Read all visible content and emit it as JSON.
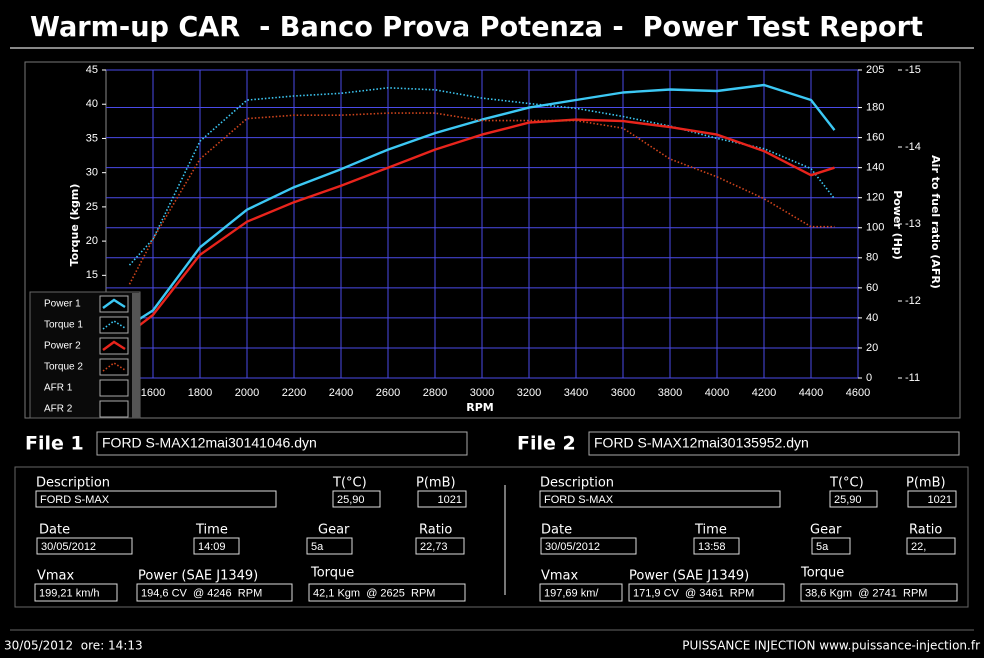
{
  "header": {
    "title": "Warm-up CAR  - Banco Prova Potenza -  Power Test Report"
  },
  "chart_data": {
    "type": "line",
    "x_label": "RPM",
    "y_label": "Torque (kgm)",
    "y2_label": "Power (Hp)",
    "y3_label": "Air to fuel ratio (AFR)",
    "x": [
      1500,
      1600,
      1800,
      2000,
      2200,
      2400,
      2600,
      2800,
      3000,
      3200,
      3400,
      3600,
      3800,
      4000,
      4200,
      4400,
      4500
    ],
    "xlim": [
      1400,
      4600
    ],
    "xticks": [
      1600,
      1800,
      2000,
      2200,
      2400,
      2600,
      2800,
      3000,
      3200,
      3400,
      3600,
      3800,
      4000,
      4200,
      4400,
      4600
    ],
    "ylim": [
      0,
      45
    ],
    "yticks": [
      15,
      20,
      25,
      30,
      35,
      40,
      45
    ],
    "y2lim": [
      0,
      205
    ],
    "y2ticks": [
      0,
      20,
      40,
      60,
      80,
      100,
      120,
      140,
      160,
      180,
      205
    ],
    "y3lim": [
      -11,
      -15
    ],
    "y3ticks": [
      -11,
      -12,
      -13,
      -14,
      -15
    ],
    "grid": true,
    "series": [
      {
        "name": "Power 1",
        "color": "#3cc8f4",
        "style": "solid",
        "axis": "y2",
        "values": [
          35,
          45,
          87,
          112,
          127,
          139,
          152,
          163,
          172,
          180,
          185,
          190,
          192,
          191,
          195,
          185,
          165
        ]
      },
      {
        "name": "Torque 1",
        "color": "#3cc8f4",
        "style": "dotted",
        "values": [
          16.5,
          20.3,
          34.6,
          40.6,
          41.2,
          41.6,
          42.4,
          42.1,
          40.9,
          40.1,
          39.4,
          38.2,
          36.8,
          35,
          33.5,
          30.6,
          26.2
        ]
      },
      {
        "name": "Power 2",
        "color": "#e8241c",
        "style": "solid",
        "axis": "y2",
        "values": [
          30,
          42,
          82,
          104,
          117,
          128,
          140,
          152,
          162,
          170,
          172,
          171,
          167,
          162,
          151,
          135,
          140
        ]
      },
      {
        "name": "Torque 2",
        "color": "#d0441c",
        "style": "dotted",
        "values": [
          13.7,
          20.3,
          32,
          37.9,
          38.4,
          38.4,
          38.7,
          38.7,
          37.6,
          37.6,
          37.6,
          36.5,
          32,
          29.4,
          26.2,
          22.1,
          22.1
        ]
      },
      {
        "name": "AFR 1",
        "color": "#000000",
        "style": "solid",
        "axis": "y3",
        "values": [
          null,
          null,
          null,
          null,
          null,
          null,
          null,
          null,
          null,
          null,
          null,
          null,
          null,
          null,
          null,
          null,
          null
        ]
      },
      {
        "name": "AFR 2",
        "color": "#000000",
        "style": "solid",
        "axis": "y3",
        "values": [
          null,
          null,
          null,
          null,
          null,
          null,
          null,
          null,
          null,
          null,
          null,
          null,
          null,
          null,
          null,
          null,
          null
        ]
      }
    ]
  },
  "files": [
    {
      "label": "File 1",
      "filename": "FORD S-MAX12mai30141046.dyn",
      "description_label": "Description",
      "description": "FORD S-MAX",
      "t_label": "T(°C)",
      "t": "25,90",
      "p_label": "P(mB)",
      "p": "1021",
      "date_label": "Date",
      "date": "30/05/2012",
      "time_label": "Time",
      "time": "14:09",
      "gear_label": "Gear",
      "gear": "5a",
      "ratio_label": "Ratio",
      "ratio": "22,73",
      "vmax_label": "Vmax",
      "vmax": "199,21 km/h",
      "power_label": "Power (SAE J1349)",
      "power": "194,6 CV  @ 4246  RPM",
      "torque_label": "Torque",
      "torque": "42,1 Kgm  @ 2625  RPM"
    },
    {
      "label": "File 2",
      "filename": "FORD S-MAX12mai30135952.dyn",
      "description_label": "Description",
      "description": "FORD S-MAX",
      "t_label": "T(°C)",
      "t": "25,90",
      "p_label": "P(mB)",
      "p": "1021",
      "date_label": "Date",
      "date": "30/05/2012",
      "time_label": "Time",
      "time": "13:58",
      "gear_label": "Gear",
      "gear": "5a",
      "ratio_label": "Ratio",
      "ratio": "22,",
      "vmax_label": "Vmax",
      "vmax": "197,69 km/",
      "power_label": "Power (SAE J1349)",
      "power": "171,9 CV  @ 3461  RPM",
      "torque_label": "Torque",
      "torque": "38,6 Kgm  @ 2741  RPM"
    }
  ],
  "footer": {
    "left": "30/05/2012  ore: 14:13",
    "right": "PUISSANCE INJECTION www.puissance-injection.fr"
  }
}
